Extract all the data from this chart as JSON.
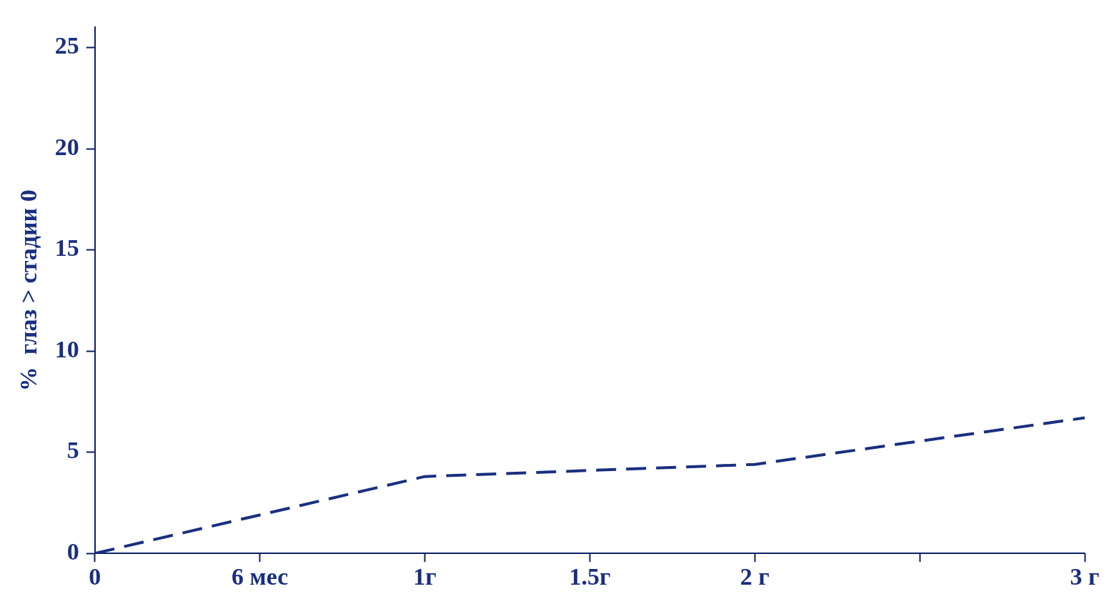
{
  "chart_data": {
    "type": "line",
    "ylabel": "%  глаз > стадии 0",
    "categories": [
      "0",
      "6 мес",
      "1г",
      "1.5г",
      "2 г",
      null,
      "3 г"
    ],
    "series": [
      {
        "color": "#1a2f80",
        "values": [
          0,
          null,
          3.8,
          null,
          4.4,
          null,
          6.7
        ]
      }
    ],
    "ylim": [
      0,
      26
    ],
    "yticks": [
      0,
      5,
      10,
      15,
      20,
      25
    ],
    "grid": false,
    "legend": false,
    "marker": "none",
    "line_style": "dashed"
  }
}
